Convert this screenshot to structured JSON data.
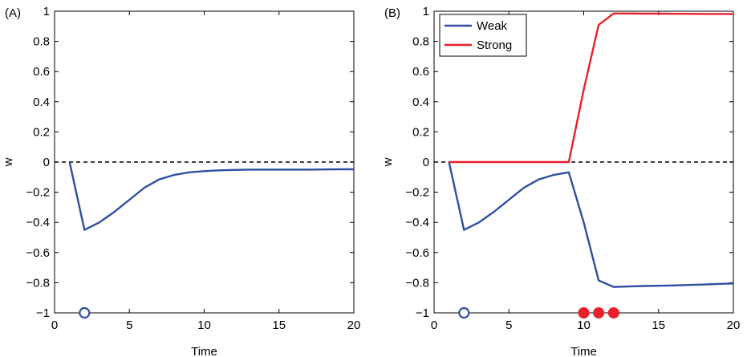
{
  "chart_data": [
    {
      "type": "line",
      "panel_label": "(A)",
      "xlabel": "Time",
      "ylabel": "w",
      "xlim": [
        0,
        20
      ],
      "ylim": [
        -1,
        1
      ],
      "xticks": [
        0,
        5,
        10,
        15,
        20
      ],
      "yticks": [
        -1,
        -0.8,
        -0.6,
        -0.4,
        -0.2,
        0,
        0.2,
        0.4,
        0.6,
        0.8,
        1
      ],
      "xtick_labels": [
        "0",
        "5",
        "10",
        "15",
        "20"
      ],
      "ytick_labels": [
        "−1",
        "−0.8",
        "−0.6",
        "−0.4",
        "−0.2",
        "0",
        "0.2",
        "0.4",
        "0.6",
        "0.8",
        "1"
      ],
      "reference_line": {
        "y": 0,
        "style": "dashed",
        "color": "#000000"
      },
      "series": [
        {
          "color": "#2E4EA0",
          "x": [
            1,
            2,
            3,
            4,
            5,
            6,
            7,
            8,
            9,
            10,
            11,
            12,
            13,
            14,
            15,
            16,
            17,
            18,
            19,
            20
          ],
          "y": [
            0,
            -0.45,
            -0.4,
            -0.33,
            -0.25,
            -0.17,
            -0.115,
            -0.085,
            -0.068,
            -0.06,
            -0.055,
            -0.052,
            -0.05,
            -0.05,
            -0.05,
            -0.05,
            -0.05,
            -0.049,
            -0.048,
            -0.048
          ]
        }
      ],
      "markers": [
        {
          "x": 2,
          "y": -1,
          "shape": "open-circle",
          "color": "#2E4EA0"
        }
      ]
    },
    {
      "type": "line",
      "panel_label": "(B)",
      "xlabel": "Time",
      "ylabel": "w",
      "xlim": [
        0,
        20
      ],
      "ylim": [
        -1,
        1
      ],
      "xticks": [
        0,
        5,
        10,
        15,
        20
      ],
      "yticks": [
        -1,
        -0.8,
        -0.6,
        -0.4,
        -0.2,
        0,
        0.2,
        0.4,
        0.6,
        0.8,
        1
      ],
      "xtick_labels": [
        "0",
        "5",
        "10",
        "15",
        "20"
      ],
      "ytick_labels": [
        "−1",
        "−0.8",
        "−0.6",
        "−0.4",
        "−0.2",
        "0",
        "0.2",
        "0.4",
        "0.6",
        "0.8",
        "1"
      ],
      "reference_line": {
        "y": 0,
        "style": "dashed",
        "color": "#000000"
      },
      "legend_position": "top-left",
      "series": [
        {
          "name": "Weak",
          "color": "#2E4EA0",
          "x": [
            1,
            2,
            3,
            4,
            5,
            6,
            7,
            8,
            9,
            10,
            11,
            12,
            13,
            14,
            15,
            16,
            17,
            18,
            19,
            20
          ],
          "y": [
            0,
            -0.45,
            -0.4,
            -0.33,
            -0.25,
            -0.17,
            -0.115,
            -0.085,
            -0.068,
            -0.4,
            -0.785,
            -0.828,
            -0.825,
            -0.822,
            -0.82,
            -0.818,
            -0.815,
            -0.812,
            -0.808,
            -0.805
          ]
        },
        {
          "name": "Strong",
          "color": "#E8202A",
          "x": [
            1,
            2,
            3,
            4,
            5,
            6,
            7,
            8,
            9,
            10,
            11,
            12,
            13,
            14,
            15,
            16,
            17,
            18,
            19,
            20
          ],
          "y": [
            0,
            0,
            0,
            0,
            0,
            0,
            0,
            0,
            0,
            0.48,
            0.91,
            0.985,
            0.985,
            0.984,
            0.984,
            0.983,
            0.983,
            0.982,
            0.982,
            0.982
          ]
        }
      ],
      "markers": [
        {
          "x": 2,
          "y": -1,
          "shape": "open-circle",
          "color": "#2E4EA0"
        },
        {
          "x": 10,
          "y": -1,
          "shape": "filled-circle",
          "color": "#E8202A"
        },
        {
          "x": 11,
          "y": -1,
          "shape": "filled-circle",
          "color": "#E8202A"
        },
        {
          "x": 12,
          "y": -1,
          "shape": "filled-circle",
          "color": "#E8202A"
        }
      ]
    }
  ]
}
